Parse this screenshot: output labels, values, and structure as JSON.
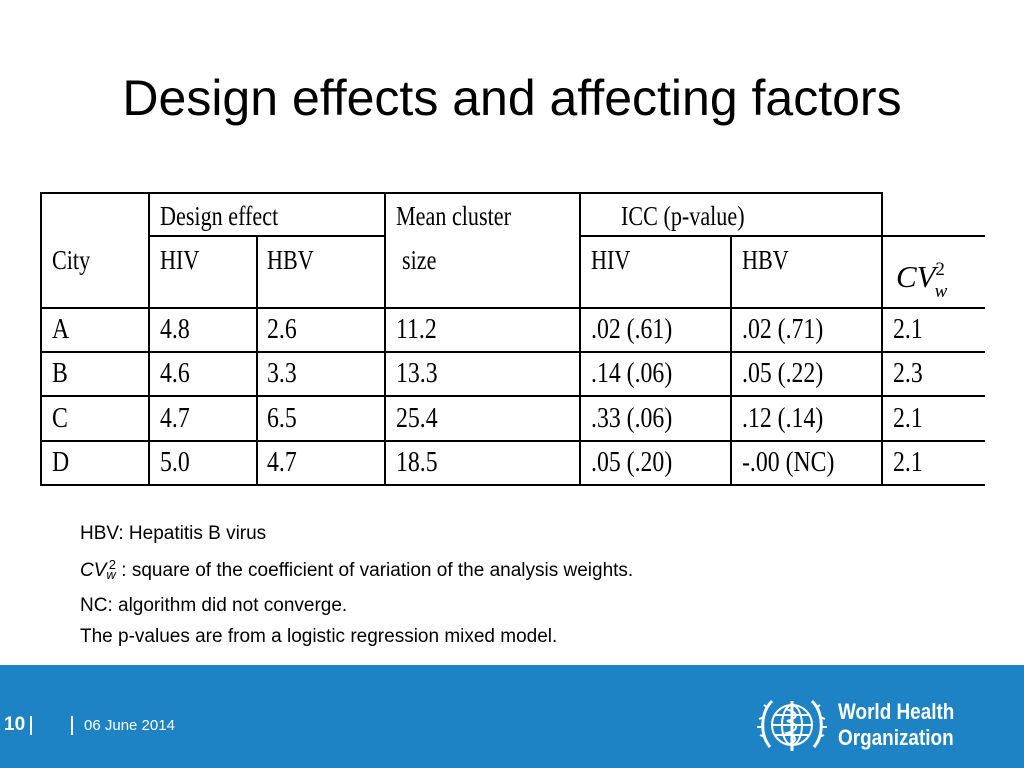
{
  "slide": {
    "title": "Design effects and affecting factors"
  },
  "table": {
    "headers": {
      "city": "City",
      "design_effect": "Design effect",
      "mean_cluster_line1": "Mean cluster",
      "mean_cluster_line2": "size",
      "icc": "ICC (p-value)",
      "hiv": "HIV",
      "hbv": "HBV",
      "cv_base": "CV",
      "cv_sub": "w",
      "cv_sup": "2"
    },
    "rows": [
      {
        "city": "A",
        "de_hiv": "4.8",
        "de_hbv": "2.6",
        "cluster": "11.2",
        "icc_hiv": ".02 (.61)",
        "icc_hbv": ".02 (.71)",
        "cv": "2.1"
      },
      {
        "city": "B",
        "de_hiv": "4.6",
        "de_hbv": "3.3",
        "cluster": "13.3",
        "icc_hiv": ".14 (.06)",
        "icc_hbv": ".05 (.22)",
        "cv": "2.3"
      },
      {
        "city": "C",
        "de_hiv": "4.7",
        "de_hbv": "6.5",
        "cluster": "25.4",
        "icc_hiv": ".33 (.06)",
        "icc_hbv": ".12 (.14)",
        "cv": "2.1"
      },
      {
        "city": "D",
        "de_hiv": "5.0",
        "de_hbv": "4.7",
        "cluster": "18.5",
        "icc_hiv": ".05 (.20)",
        "icc_hbv": "-.00 (NC)",
        "cv": "2.1"
      }
    ]
  },
  "notes": {
    "hbv": "HBV: Hepatitis B virus",
    "cv_base": "CV",
    "cv_sub": "w",
    "cv_sup": "2",
    "cv_text": " : square of the coefficient of variation of the analysis weights.",
    "nc": "NC: algorithm did not converge.",
    "pvalues": "The p-values are from a logistic regression mixed model."
  },
  "footer": {
    "page_number": "10",
    "date": "06 June 2014",
    "org_line1": "World Health",
    "org_line2": "Organization",
    "background_color": "#1d83c4"
  }
}
